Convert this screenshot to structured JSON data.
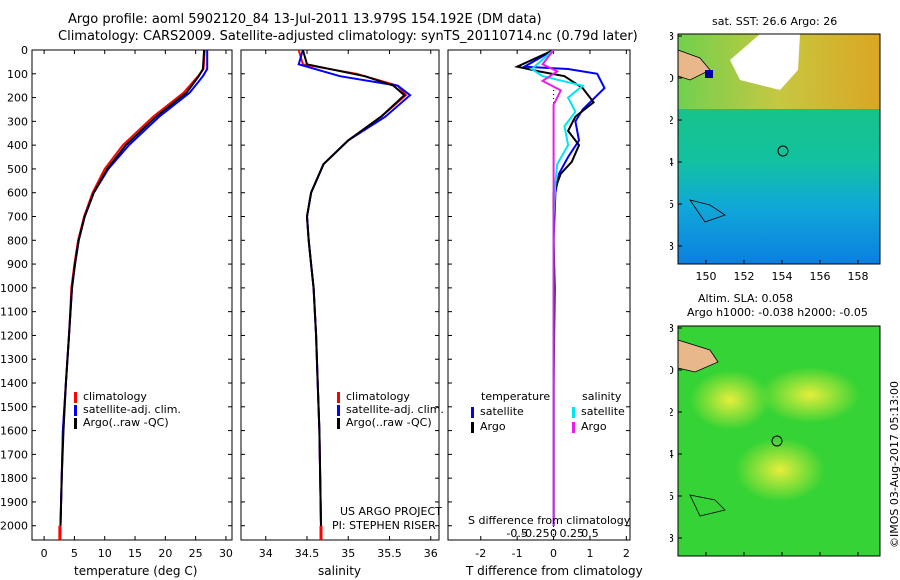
{
  "header": {
    "line1": "Argo profile: aoml 5902120_84 13-Jul-2011 13.979S 154.192E (DM data)",
    "line2": "Climatology: CARS2009. Satellite-adjusted climatology: synTS_20110714.nc (0.79d later)"
  },
  "colors": {
    "climatology": "#ff0000",
    "satellite": "#0000ff",
    "argo": "#000000",
    "sal_satellite": "#00e5ee",
    "sal_argo": "#e81ee8"
  },
  "depth_ticks": [
    "0",
    "100",
    "200",
    "300",
    "400",
    "500",
    "600",
    "700",
    "800",
    "900",
    "1000",
    "1100",
    "1200",
    "1300",
    "1400",
    "1500",
    "1600",
    "1700",
    "1800",
    "1900",
    "2000"
  ],
  "chart_data": [
    {
      "type": "line",
      "name": "temperature",
      "xlabel": "temperature (deg C)",
      "ylabel": "depth",
      "xlim": [
        -2,
        31
      ],
      "ylim": [
        2060,
        0
      ],
      "xticks": [
        "0",
        "5",
        "10",
        "15",
        "20",
        "25",
        "30"
      ],
      "xtick_values": [
        0,
        5,
        10,
        15,
        20,
        25,
        30
      ],
      "legend": [
        "climatology",
        "satellite-adj. clim.",
        "Argo(..raw -QC)"
      ],
      "series": [
        {
          "name": "climatology",
          "color": "#ff0000",
          "points": [
            [
              26.5,
              0
            ],
            [
              26.3,
              80
            ],
            [
              25.4,
              110
            ],
            [
              23,
              180
            ],
            [
              18,
              280
            ],
            [
              13,
              400
            ],
            [
              10,
              500
            ],
            [
              8,
              600
            ],
            [
              6.6,
              700
            ],
            [
              5.6,
              800
            ],
            [
              5,
              900
            ],
            [
              4.5,
              1000
            ],
            [
              4.1,
              1200
            ],
            [
              3.6,
              1400
            ],
            [
              3.1,
              1600
            ],
            [
              2.9,
              1800
            ],
            [
              2.7,
              2000
            ],
            [
              2.6,
              2060
            ]
          ]
        },
        {
          "name": "satellite-adj. clim.",
          "color": "#0000ff",
          "points": [
            [
              26.9,
              0
            ],
            [
              26.9,
              80
            ],
            [
              26.2,
              110
            ],
            [
              24,
              180
            ],
            [
              19,
              280
            ],
            [
              14,
              400
            ],
            [
              10.6,
              500
            ],
            [
              8.2,
              600
            ],
            [
              6.7,
              700
            ],
            [
              5.7,
              800
            ],
            [
              5.1,
              900
            ],
            [
              4.6,
              1000
            ],
            [
              4.1,
              1200
            ],
            [
              3.6,
              1400
            ],
            [
              3.1,
              1600
            ],
            [
              2.9,
              1800
            ],
            [
              2.7,
              2000
            ],
            [
              2.6,
              2060
            ]
          ]
        },
        {
          "name": "Argo(..raw -QC)",
          "color": "#000000",
          "points": [
            [
              26.4,
              0
            ],
            [
              26.2,
              80
            ],
            [
              25.5,
              110
            ],
            [
              23.5,
              180
            ],
            [
              18.5,
              280
            ],
            [
              13.5,
              400
            ],
            [
              10.4,
              500
            ],
            [
              8.2,
              600
            ],
            [
              6.7,
              700
            ],
            [
              5.7,
              800
            ],
            [
              5.1,
              900
            ],
            [
              4.6,
              1000
            ],
            [
              4.1,
              1200
            ],
            [
              3.6,
              1400
            ],
            [
              3.2,
              1600
            ],
            [
              2.9,
              1800
            ],
            [
              2.7,
              2000
            ]
          ]
        }
      ]
    },
    {
      "type": "line",
      "name": "salinity",
      "xlabel": "salinity",
      "ylabel": "depth",
      "xlim": [
        33.7,
        36.1
      ],
      "ylim": [
        2060,
        0
      ],
      "xticks": [
        "34",
        "34.5",
        "35",
        "35.5",
        "36"
      ],
      "xtick_values": [
        34,
        34.5,
        35,
        35.5,
        36
      ],
      "legend": [
        "climatology",
        "satellite-adj. clim.",
        "Argo(..raw -QC)"
      ],
      "annotations": [
        "US ARGO PROJECT",
        "PI: STEPHEN RISER"
      ],
      "series": [
        {
          "name": "climatology",
          "color": "#ff0000",
          "points": [
            [
              34.4,
              0
            ],
            [
              34.45,
              60
            ],
            [
              35.1,
              100
            ],
            [
              35.6,
              150
            ],
            [
              35.7,
              190
            ],
            [
              35.4,
              280
            ],
            [
              35.0,
              380
            ],
            [
              34.7,
              480
            ],
            [
              34.55,
              600
            ],
            [
              34.5,
              700
            ],
            [
              34.52,
              800
            ],
            [
              34.55,
              900
            ],
            [
              34.58,
              1000
            ],
            [
              34.61,
              1200
            ],
            [
              34.63,
              1400
            ],
            [
              34.65,
              1600
            ],
            [
              34.66,
              1800
            ],
            [
              34.67,
              2000
            ],
            [
              34.67,
              2060
            ]
          ]
        },
        {
          "name": "satellite-adj. clim.",
          "color": "#0000ff",
          "points": [
            [
              34.45,
              0
            ],
            [
              34.4,
              60
            ],
            [
              34.9,
              110
            ],
            [
              35.6,
              150
            ],
            [
              35.75,
              190
            ],
            [
              35.45,
              280
            ],
            [
              35.0,
              380
            ],
            [
              34.7,
              480
            ],
            [
              34.55,
              600
            ],
            [
              34.5,
              700
            ],
            [
              34.52,
              800
            ],
            [
              34.55,
              900
            ],
            [
              34.58,
              1000
            ],
            [
              34.61,
              1200
            ],
            [
              34.63,
              1400
            ],
            [
              34.65,
              1600
            ],
            [
              34.66,
              1800
            ],
            [
              34.67,
              2000
            ],
            [
              34.67,
              2060
            ]
          ]
        },
        {
          "name": "Argo(..raw -QC)",
          "color": "#000000",
          "points": [
            [
              34.45,
              0
            ],
            [
              34.5,
              60
            ],
            [
              35.2,
              110
            ],
            [
              35.55,
              150
            ],
            [
              35.68,
              190
            ],
            [
              35.4,
              280
            ],
            [
              35.0,
              380
            ],
            [
              34.7,
              480
            ],
            [
              34.55,
              600
            ],
            [
              34.5,
              700
            ],
            [
              34.52,
              800
            ],
            [
              34.55,
              900
            ],
            [
              34.58,
              1000
            ],
            [
              34.61,
              1200
            ],
            [
              34.63,
              1400
            ],
            [
              34.65,
              1600
            ],
            [
              34.66,
              1800
            ],
            [
              34.67,
              2000
            ]
          ]
        }
      ]
    },
    {
      "type": "line",
      "name": "difference from climatology",
      "xlabel": "T difference from climatology",
      "xlabel_top": "S difference from climatology",
      "xlim": [
        -2.9,
        2.1
      ],
      "ylim": [
        2060,
        0
      ],
      "xticks": [
        "-2",
        "-1",
        "0",
        "1",
        "2"
      ],
      "xtick_values": [
        -2,
        -1,
        0,
        1,
        2
      ],
      "sticks": [
        "-0.5",
        "-0.25",
        "0",
        "0.25",
        "0.5"
      ],
      "stick_values": [
        -1,
        -0.5,
        0,
        0.5,
        1
      ],
      "legend": {
        "temperature": "temperature",
        "salinity": "salinity",
        "satellite": "satellite",
        "argo": "Argo"
      },
      "series": [
        {
          "name": "T satellite",
          "color": "#0000ff",
          "points": [
            [
              0,
              0
            ],
            [
              -0.8,
              70
            ],
            [
              0.4,
              80
            ],
            [
              1.2,
              100
            ],
            [
              1.4,
              160
            ],
            [
              0.8,
              250
            ],
            [
              0.6,
              300
            ],
            [
              0.7,
              380
            ],
            [
              0.4,
              450
            ],
            [
              0.15,
              520
            ],
            [
              0.05,
              600
            ],
            [
              0,
              800
            ],
            [
              0,
              2000
            ]
          ]
        },
        {
          "name": "T Argo",
          "color": "#000000",
          "points": [
            [
              0,
              0
            ],
            [
              -1.0,
              70
            ],
            [
              -0.4,
              90
            ],
            [
              0.3,
              110
            ],
            [
              0.8,
              160
            ],
            [
              1.1,
              220
            ],
            [
              0.6,
              280
            ],
            [
              0.4,
              340
            ],
            [
              0.7,
              400
            ],
            [
              0.5,
              470
            ],
            [
              0.2,
              520
            ],
            [
              0,
              600
            ],
            [
              0,
              800
            ],
            [
              0.03,
              1000
            ],
            [
              0,
              1400
            ],
            [
              0,
              2000
            ]
          ]
        },
        {
          "name": "S satellite",
          "color": "#00e5ee",
          "points": [
            [
              0,
              0
            ],
            [
              -0.6,
              80
            ],
            [
              -0.3,
              110
            ],
            [
              0.8,
              150
            ],
            [
              0.4,
              200
            ],
            [
              0.6,
              260
            ],
            [
              0.3,
              320
            ],
            [
              0.4,
              400
            ],
            [
              0.1,
              480
            ],
            [
              0.05,
              560
            ],
            [
              0,
              700
            ],
            [
              0,
              2000
            ]
          ]
        },
        {
          "name": "S Argo",
          "color": "#e81ee8",
          "points": [
            [
              0,
              0
            ],
            [
              -0.3,
              60
            ],
            [
              0.1,
              90
            ],
            [
              -0.3,
              130
            ],
            [
              0.2,
              170
            ],
            [
              0,
              230
            ],
            [
              0,
              2000
            ]
          ]
        }
      ]
    }
  ],
  "maps": {
    "sst": {
      "title": "sat. SST: 26.6 Argo: 26",
      "yticks": [
        "-8",
        "-10",
        "-12",
        "-14",
        "-16",
        "-18"
      ],
      "xticks": [
        "150",
        "152",
        "154",
        "156",
        "158"
      ]
    },
    "sla": {
      "title1": "Altim. SLA: 0.058",
      "title2": "Argo h1000: -0.038 h2000: -0.05",
      "yticks": [
        "-8",
        "-10",
        "-12",
        "-14",
        "-16",
        "-18"
      ],
      "xticks": [
        "150",
        "152",
        "154",
        "156",
        "158"
      ]
    }
  },
  "credit": "©IMOS 03-Aug-2017 05:13:00"
}
